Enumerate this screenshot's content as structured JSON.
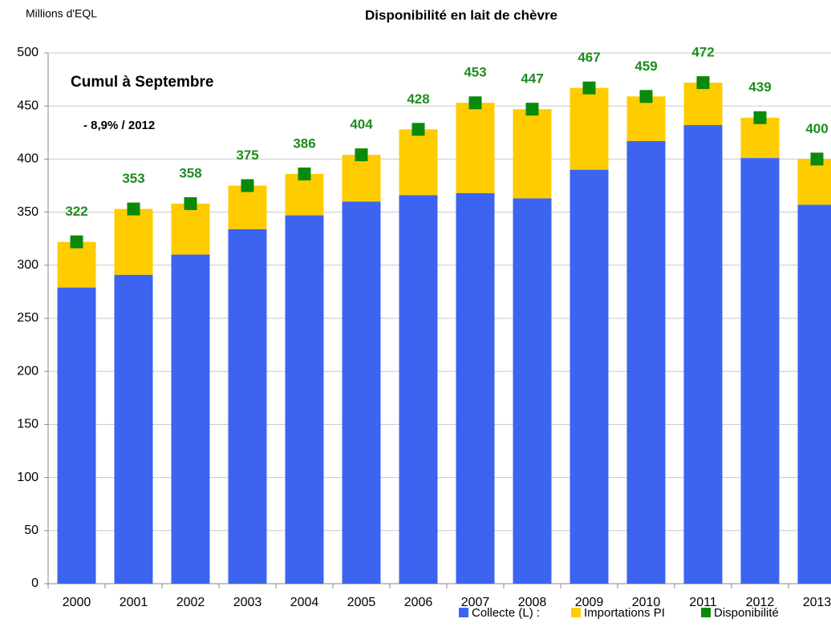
{
  "chart_data": {
    "type": "bar",
    "stacked": true,
    "title": "Disponibilité en lait de chèvre",
    "y_label": "Millions d'EQL",
    "annotations": [
      "Cumul à Septembre",
      "- 8,9% / 2012"
    ],
    "categories": [
      "2000",
      "2001",
      "2002",
      "2003",
      "2004",
      "2005",
      "2006",
      "2007",
      "2008",
      "2009",
      "2010",
      "2011",
      "2012",
      "2013"
    ],
    "series": [
      {
        "name": "Collecte (L) :",
        "color": "#3c64f0",
        "values": [
          279,
          291,
          310,
          334,
          347,
          360,
          366,
          368,
          363,
          390,
          417,
          432,
          401,
          357
        ]
      },
      {
        "name": "Importations PI",
        "color": "#ffcc00",
        "values": [
          43,
          62,
          48,
          41,
          39,
          44,
          62,
          85,
          84,
          77,
          42,
          40,
          38,
          43
        ]
      },
      {
        "name": "Disponibilité",
        "color": "#0a8a0a",
        "type": "marker",
        "values": [
          322,
          353,
          358,
          375,
          386,
          404,
          428,
          453,
          447,
          467,
          459,
          472,
          439,
          400
        ],
        "label_color": "#1e8c1e"
      }
    ],
    "ylim": [
      0,
      500
    ],
    "yticks": [
      0,
      50,
      100,
      150,
      200,
      250,
      300,
      350,
      400,
      450,
      500
    ],
    "grid": true,
    "legend": "bottom"
  }
}
